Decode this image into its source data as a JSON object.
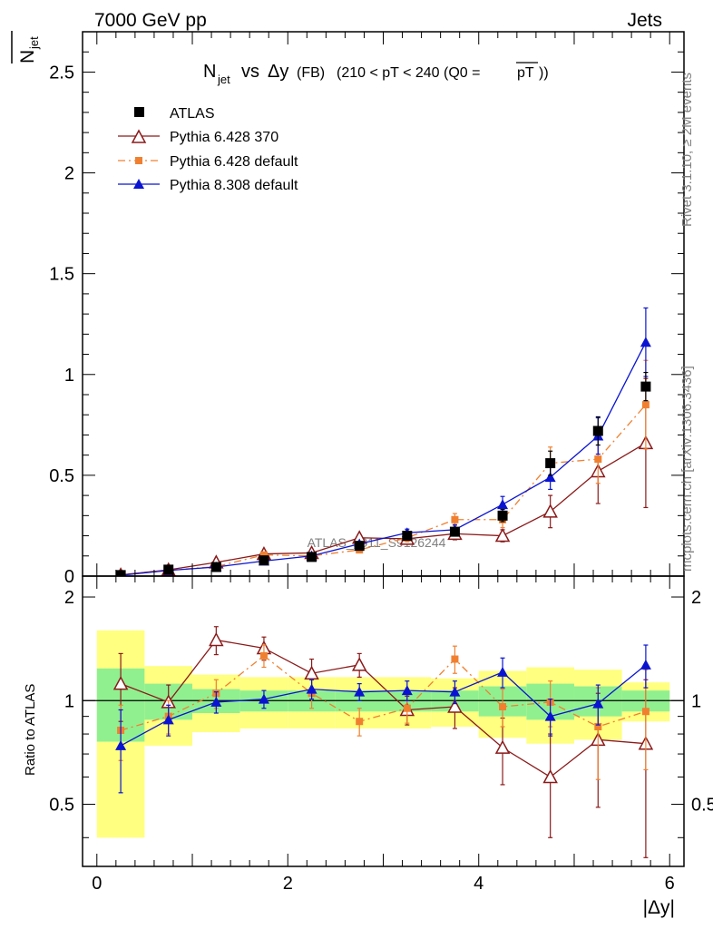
{
  "header": {
    "left": "7000 GeV pp",
    "right": "Jets"
  },
  "side_labels": {
    "rivet": "Rivet 3.1.10, ≥ 2M events",
    "mcplots": "mcplots.cern.ch [arXiv:1306.3436]"
  },
  "watermark": "ATLAS_2011_S9126244",
  "ratio_ylabel": "Ratio to ATLAS",
  "chart_data": {
    "type": "scatter",
    "title": {
      "lhs": "N",
      "lhs_sub": "jet",
      "vs": "vs",
      "var": "Δy",
      "fb": "(FB)",
      "range": "(210 < pT < 240 (Q0 =",
      "q0": "pT",
      "close": "))"
    },
    "ylabel": {
      "main": "N",
      "sub": "jet"
    },
    "xlabel": "|Δy|",
    "xlim": [
      -0.15,
      6.15
    ],
    "ylim": [
      0,
      2.7
    ],
    "ratio_ylim": [
      0.33,
      2.3
    ],
    "x_ticks": [
      "0",
      "2",
      "4",
      "6"
    ],
    "y_ticks": [
      "0",
      "0.5",
      "1",
      "1.5",
      "2",
      "2.5"
    ],
    "ratio_ticks": [
      "0.5",
      "1",
      "2"
    ],
    "x": [
      0.25,
      0.75,
      1.25,
      1.75,
      2.25,
      2.75,
      3.25,
      3.75,
      4.25,
      4.75,
      5.25,
      5.75
    ],
    "bin_edges": [
      0,
      0.5,
      1.0,
      1.5,
      2.0,
      2.5,
      3.0,
      3.5,
      4.0,
      4.5,
      5.0,
      5.5,
      6.0
    ],
    "band_inner": [
      0.24,
      0.12,
      0.08,
      0.07,
      0.07,
      0.07,
      0.07,
      0.07,
      0.1,
      0.12,
      0.1,
      0.07
    ],
    "band_outer": [
      0.6,
      0.26,
      0.19,
      0.17,
      0.17,
      0.17,
      0.17,
      0.16,
      0.22,
      0.25,
      0.23,
      0.13
    ],
    "series": [
      {
        "name": "ATLAS",
        "style": "data",
        "color": "#000000",
        "values": [
          0.005,
          0.032,
          0.045,
          0.078,
          0.095,
          0.15,
          0.2,
          0.22,
          0.3,
          0.56,
          0.72,
          0.94
        ],
        "errors": [
          0.001,
          0.003,
          0.005,
          0.007,
          0.009,
          0.012,
          0.02,
          0.02,
          0.03,
          0.06,
          0.07,
          0.07
        ]
      },
      {
        "name": "Pythia 6.428 370",
        "style": "open-triangle",
        "color": "#8b1a1a",
        "dash": "",
        "values": [
          0.006,
          0.031,
          0.068,
          0.11,
          0.115,
          0.19,
          0.185,
          0.21,
          0.2,
          0.32,
          0.52,
          0.66
        ],
        "errors": [
          0.001,
          0.003,
          0.006,
          0.008,
          0.01,
          0.015,
          0.02,
          0.03,
          0.03,
          0.08,
          0.16,
          0.32
        ],
        "ratio": [
          1.12,
          0.99,
          1.5,
          1.42,
          1.2,
          1.27,
          0.94,
          0.96,
          0.73,
          0.6,
          0.77,
          0.75
        ],
        "ratio_err": [
          0.25,
          0.12,
          0.14,
          0.11,
          0.12,
          0.1,
          0.09,
          0.13,
          0.16,
          0.2,
          0.28,
          0.4
        ]
      },
      {
        "name": "Pythia 6.428 default",
        "style": "square",
        "color": "#f08030",
        "dash": "8,4,2,4",
        "values": [
          0.004,
          0.029,
          0.047,
          0.105,
          0.1,
          0.13,
          0.19,
          0.28,
          0.28,
          0.56,
          0.58,
          0.85
        ],
        "errors": [
          0.001,
          0.003,
          0.005,
          0.008,
          0.01,
          0.01,
          0.02,
          0.03,
          0.04,
          0.08,
          0.12,
          0.22
        ],
        "ratio": [
          0.82,
          0.9,
          1.05,
          1.35,
          1.05,
          0.87,
          0.95,
          1.32,
          0.96,
          0.99,
          0.84,
          0.93
        ],
        "ratio_err": [
          0.15,
          0.1,
          0.1,
          0.1,
          0.1,
          0.08,
          0.09,
          0.12,
          0.12,
          0.15,
          0.25,
          0.3
        ]
      },
      {
        "name": "Pythia 8.308 default",
        "style": "triangle",
        "color": "#0a14d0",
        "dash": "",
        "values": [
          0.004,
          0.028,
          0.045,
          0.075,
          0.1,
          0.16,
          0.215,
          0.23,
          0.355,
          0.49,
          0.695,
          1.16
        ],
        "errors": [
          0.001,
          0.003,
          0.004,
          0.006,
          0.009,
          0.012,
          0.018,
          0.025,
          0.04,
          0.06,
          0.09,
          0.17
        ],
        "ratio": [
          0.74,
          0.88,
          0.99,
          1.01,
          1.08,
          1.06,
          1.07,
          1.06,
          1.21,
          0.9,
          0.98,
          1.27
        ],
        "ratio_err": [
          0.2,
          0.09,
          0.07,
          0.06,
          0.07,
          0.06,
          0.07,
          0.08,
          0.12,
          0.11,
          0.13,
          0.18
        ]
      }
    ]
  }
}
